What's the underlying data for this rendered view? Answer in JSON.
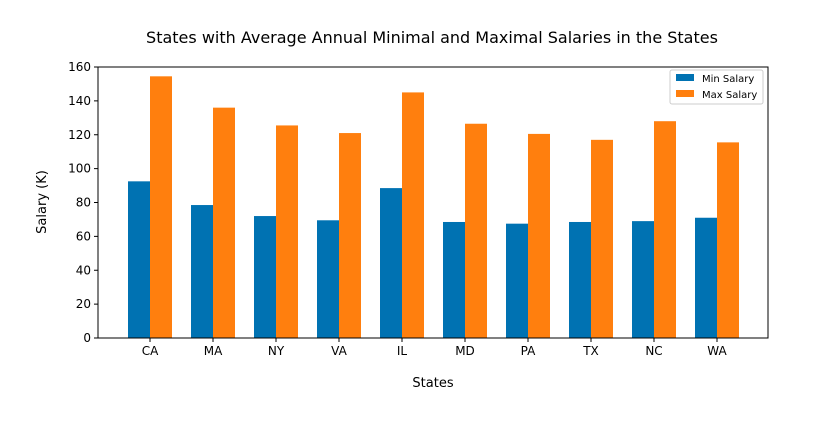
{
  "chart_data": {
    "type": "bar",
    "title": "States with Average Annual Minimal and Maximal Salaries in the States",
    "xlabel": "States",
    "ylabel": "Salary (K)",
    "categories": [
      "CA",
      "MA",
      "NY",
      "VA",
      "IL",
      "MD",
      "PA",
      "TX",
      "NC",
      "WA"
    ],
    "series": [
      {
        "name": "Min Salary",
        "color": "#0072B2",
        "values": [
          92.5,
          78.5,
          72.0,
          69.5,
          88.5,
          68.5,
          67.5,
          68.5,
          69.0,
          71.0
        ]
      },
      {
        "name": "Max Salary",
        "color": "#FF7F0E",
        "values": [
          154.5,
          136.0,
          125.5,
          121.0,
          145.0,
          126.5,
          120.5,
          117.0,
          128.0,
          115.5
        ]
      }
    ],
    "ylim": [
      0,
      160
    ],
    "yticks": [
      0,
      20,
      40,
      60,
      80,
      100,
      120,
      140,
      160
    ],
    "grid": false,
    "legend_position": "top-right"
  }
}
